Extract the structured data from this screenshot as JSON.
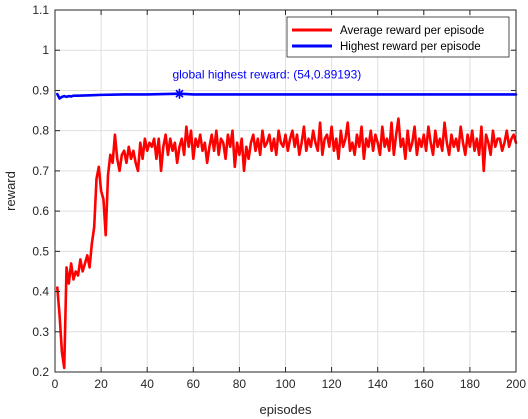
{
  "chart_data": {
    "type": "line",
    "xlabel": "episodes",
    "ylabel": "reward",
    "xlim": [
      0,
      200
    ],
    "ylim": [
      0.2,
      1.1
    ],
    "xticks": [
      0,
      20,
      40,
      60,
      80,
      100,
      120,
      140,
      160,
      180,
      200
    ],
    "yticks": [
      0.2,
      0.3,
      0.4,
      0.5,
      0.6,
      0.7,
      0.8,
      0.9,
      1,
      1.1
    ],
    "xtick_labels": [
      "0",
      "20",
      "40",
      "60",
      "80",
      "100",
      "120",
      "140",
      "160",
      "180",
      "200"
    ],
    "ytick_labels": [
      "0.2",
      "0.3",
      "0.4",
      "0.5",
      "0.6",
      "0.7",
      "0.8",
      "0.9",
      "1",
      "1.1"
    ],
    "grid": true,
    "legend_position": "top-right",
    "series": [
      {
        "name": "Average reward per episode",
        "color": "#ff0000",
        "x": [
          1,
          2,
          3,
          4,
          5,
          6,
          7,
          8,
          9,
          10,
          11,
          12,
          13,
          14,
          15,
          16,
          17,
          18,
          19,
          20,
          21,
          22,
          23,
          24,
          25,
          26,
          27,
          28,
          29,
          30,
          31,
          32,
          33,
          34,
          35,
          36,
          37,
          38,
          39,
          40,
          41,
          42,
          43,
          44,
          45,
          46,
          47,
          48,
          49,
          50,
          51,
          52,
          53,
          54,
          55,
          56,
          57,
          58,
          59,
          60,
          61,
          62,
          63,
          64,
          65,
          66,
          67,
          68,
          69,
          70,
          71,
          72,
          73,
          74,
          75,
          76,
          77,
          78,
          79,
          80,
          81,
          82,
          83,
          84,
          85,
          86,
          87,
          88,
          89,
          90,
          91,
          92,
          93,
          94,
          95,
          96,
          97,
          98,
          99,
          100,
          101,
          102,
          103,
          104,
          105,
          106,
          107,
          108,
          109,
          110,
          111,
          112,
          113,
          114,
          115,
          116,
          117,
          118,
          119,
          120,
          121,
          122,
          123,
          124,
          125,
          126,
          127,
          128,
          129,
          130,
          131,
          132,
          133,
          134,
          135,
          136,
          137,
          138,
          139,
          140,
          141,
          142,
          143,
          144,
          145,
          146,
          147,
          148,
          149,
          150,
          151,
          152,
          153,
          154,
          155,
          156,
          157,
          158,
          159,
          160,
          161,
          162,
          163,
          164,
          165,
          166,
          167,
          168,
          169,
          170,
          171,
          172,
          173,
          174,
          175,
          176,
          177,
          178,
          179,
          180,
          181,
          182,
          183,
          184,
          185,
          186,
          187,
          188,
          189,
          190,
          191,
          192,
          193,
          194,
          195,
          196,
          197,
          198,
          199,
          200
        ],
        "y": [
          0.41,
          0.34,
          0.25,
          0.21,
          0.46,
          0.42,
          0.47,
          0.43,
          0.45,
          0.44,
          0.48,
          0.45,
          0.47,
          0.49,
          0.46,
          0.52,
          0.56,
          0.68,
          0.71,
          0.65,
          0.63,
          0.54,
          0.69,
          0.74,
          0.72,
          0.79,
          0.73,
          0.7,
          0.74,
          0.75,
          0.72,
          0.76,
          0.73,
          0.75,
          0.72,
          0.7,
          0.77,
          0.73,
          0.78,
          0.75,
          0.77,
          0.76,
          0.78,
          0.73,
          0.78,
          0.7,
          0.76,
          0.79,
          0.74,
          0.78,
          0.75,
          0.77,
          0.72,
          0.76,
          0.78,
          0.74,
          0.81,
          0.76,
          0.8,
          0.73,
          0.78,
          0.76,
          0.79,
          0.75,
          0.77,
          0.72,
          0.76,
          0.79,
          0.75,
          0.8,
          0.74,
          0.78,
          0.77,
          0.73,
          0.79,
          0.76,
          0.8,
          0.71,
          0.77,
          0.74,
          0.78,
          0.7,
          0.76,
          0.73,
          0.77,
          0.79,
          0.75,
          0.78,
          0.74,
          0.8,
          0.76,
          0.77,
          0.79,
          0.75,
          0.78,
          0.74,
          0.8,
          0.77,
          0.76,
          0.79,
          0.75,
          0.78,
          0.8,
          0.76,
          0.79,
          0.74,
          0.77,
          0.81,
          0.75,
          0.78,
          0.76,
          0.8,
          0.77,
          0.75,
          0.82,
          0.74,
          0.78,
          0.79,
          0.76,
          0.81,
          0.75,
          0.78,
          0.73,
          0.8,
          0.76,
          0.78,
          0.82,
          0.75,
          0.77,
          0.74,
          0.79,
          0.76,
          0.81,
          0.73,
          0.78,
          0.76,
          0.8,
          0.75,
          0.79,
          0.77,
          0.74,
          0.81,
          0.76,
          0.78,
          0.75,
          0.82,
          0.74,
          0.79,
          0.83,
          0.76,
          0.78,
          0.73,
          0.8,
          0.75,
          0.77,
          0.81,
          0.74,
          0.78,
          0.76,
          0.79,
          0.75,
          0.81,
          0.77,
          0.74,
          0.8,
          0.76,
          0.78,
          0.75,
          0.82,
          0.77,
          0.74,
          0.79,
          0.76,
          0.78,
          0.75,
          0.81,
          0.77,
          0.74,
          0.79,
          0.76,
          0.8,
          0.75,
          0.78,
          0.74,
          0.81,
          0.7,
          0.79,
          0.77,
          0.74,
          0.8,
          0.76,
          0.78,
          0.78,
          0.75,
          0.77,
          0.8,
          0.76,
          0.78,
          0.79,
          0.77
        ],
        "marker": "none"
      },
      {
        "name": "Highest reward per episode",
        "color": "#0000ff",
        "x": [
          1,
          2,
          3,
          4,
          5,
          6,
          7,
          8,
          10,
          15,
          20,
          30,
          40,
          54,
          60,
          80,
          100,
          120,
          140,
          160,
          180,
          200
        ],
        "y": [
          0.891,
          0.88,
          0.884,
          0.886,
          0.884,
          0.886,
          0.885,
          0.887,
          0.887,
          0.888,
          0.889,
          0.89,
          0.89,
          0.89193,
          0.89,
          0.89,
          0.89,
          0.89,
          0.89,
          0.89,
          0.89,
          0.89
        ],
        "marker": "none"
      }
    ],
    "annotations": [
      {
        "text": "global highest reward: (54,0.89193)",
        "x": 54,
        "y": 0.89193,
        "marker": "*",
        "color": "#0000ff"
      }
    ]
  }
}
